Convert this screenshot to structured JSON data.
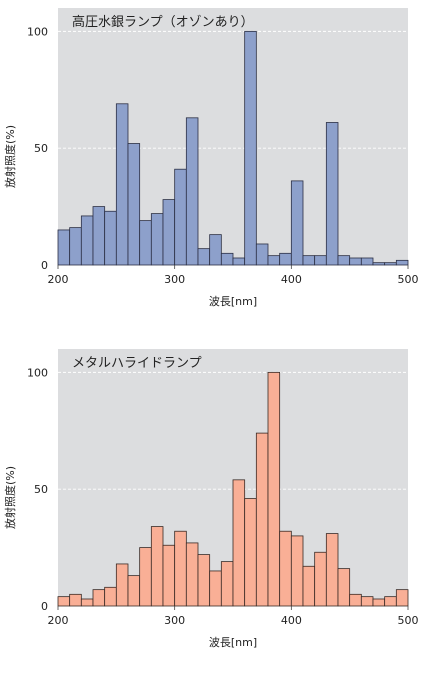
{
  "chart_data": [
    {
      "type": "bar",
      "title": "高圧水銀ランプ（オゾンあり）",
      "xlabel": "波長[nm]",
      "ylabel": "放射照度(%)",
      "xlim": [
        200,
        500
      ],
      "ylim": [
        0,
        110
      ],
      "xticks": [
        "200",
        "300",
        "400",
        "500"
      ],
      "yticks": [
        "0",
        "50",
        "100"
      ],
      "bin_width_nm": 10,
      "bin_starts": [
        200,
        210,
        220,
        230,
        240,
        250,
        260,
        270,
        280,
        290,
        300,
        310,
        320,
        330,
        340,
        350,
        360,
        370,
        380,
        390,
        400,
        410,
        420,
        430,
        440,
        450,
        460,
        470,
        480,
        490
      ],
      "values": [
        15,
        16,
        21,
        25,
        23,
        69,
        52,
        19,
        22,
        28,
        41,
        63,
        7,
        13,
        5,
        3,
        100,
        9,
        4,
        5,
        36,
        4,
        4,
        61,
        4,
        3,
        3,
        1,
        1,
        2
      ],
      "grid": "horizontal-dashed",
      "colors": {
        "bar_fill": "#8da0cb",
        "bar_stroke": "#2b2f44",
        "plot_bg": "#dcdddf"
      }
    },
    {
      "type": "bar",
      "title": "メタルハライドランプ",
      "xlabel": "波長[nm]",
      "ylabel": "放射照度(%)",
      "xlim": [
        200,
        500
      ],
      "ylim": [
        0,
        110
      ],
      "xticks": [
        "200",
        "300",
        "400",
        "500"
      ],
      "yticks": [
        "0",
        "50",
        "100"
      ],
      "bin_width_nm": 10,
      "bin_starts": [
        200,
        210,
        220,
        230,
        240,
        250,
        260,
        270,
        280,
        290,
        300,
        310,
        320,
        330,
        340,
        350,
        360,
        370,
        380,
        390,
        400,
        410,
        420,
        430,
        440,
        450,
        460,
        470,
        480,
        490
      ],
      "values": [
        4,
        5,
        3,
        7,
        8,
        18,
        13,
        25,
        34,
        26,
        32,
        27,
        22,
        15,
        19,
        54,
        46,
        74,
        100,
        32,
        30,
        17,
        23,
        31,
        16,
        5,
        4,
        3,
        4,
        7
      ],
      "grid": "horizontal-dashed",
      "colors": {
        "bar_fill": "#f9af96",
        "bar_stroke": "#3a2a25",
        "plot_bg": "#dcdddf"
      }
    }
  ]
}
